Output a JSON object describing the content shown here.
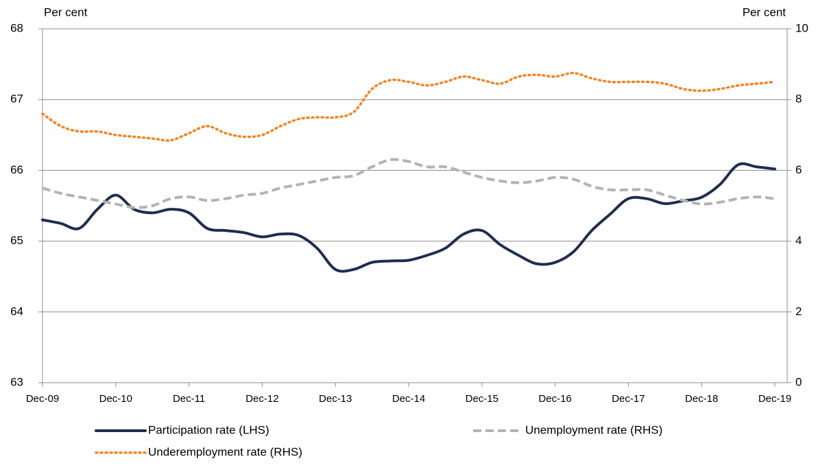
{
  "chart_data": {
    "type": "line",
    "y_label": "Per cent",
    "y2_label": "Per cent",
    "categories": [
      "Dec-09",
      null,
      null,
      null,
      "Dec-10",
      null,
      null,
      null,
      "Dec-11",
      null,
      null,
      null,
      "Dec-12",
      null,
      null,
      null,
      "Dec-13",
      null,
      null,
      null,
      "Dec-14",
      null,
      null,
      null,
      "Dec-15",
      null,
      null,
      null,
      "Dec-16",
      null,
      null,
      null,
      "Dec-17",
      null,
      null,
      null,
      "Dec-18",
      null,
      null,
      null,
      "Dec-19"
    ],
    "ylim": [
      63,
      68
    ],
    "yticks": [
      63,
      64,
      65,
      66,
      67,
      68
    ],
    "y2lim": [
      0,
      10
    ],
    "y2ticks": [
      0,
      2,
      4,
      6,
      8,
      10
    ],
    "grid": true,
    "series": [
      {
        "name": "Participation rate (LHS)",
        "color": "#1f2d4e",
        "dash": "solid",
        "axis": "y",
        "values": [
          65.3,
          65.25,
          65.18,
          65.45,
          65.65,
          65.45,
          65.4,
          65.45,
          65.4,
          65.18,
          65.15,
          65.12,
          65.06,
          65.1,
          65.08,
          64.9,
          64.6,
          64.6,
          64.7,
          64.72,
          64.73,
          64.8,
          64.9,
          65.1,
          65.15,
          64.95,
          64.8,
          64.68,
          64.7,
          64.85,
          65.15,
          65.38,
          65.6,
          65.6,
          65.53,
          65.57,
          65.62,
          65.8,
          66.08,
          66.05,
          66.02
        ]
      },
      {
        "name": "Unemployment rate (RHS)",
        "color": "#b3b3b3",
        "dash": "dashed",
        "axis": "y2",
        "values": [
          5.5,
          5.35,
          5.25,
          5.15,
          5.05,
          4.95,
          5.0,
          5.2,
          5.25,
          5.15,
          5.2,
          5.3,
          5.35,
          5.5,
          5.6,
          5.7,
          5.8,
          5.85,
          6.1,
          6.3,
          6.25,
          6.1,
          6.1,
          5.95,
          5.8,
          5.7,
          5.65,
          5.7,
          5.8,
          5.75,
          5.55,
          5.45,
          5.45,
          5.45,
          5.3,
          5.15,
          5.05,
          5.1,
          5.2,
          5.25,
          5.2
        ]
      },
      {
        "name": "Underemployment rate (RHS)",
        "color": "#f58220",
        "dash": "dotted",
        "axis": "y2",
        "values": [
          7.6,
          7.25,
          7.1,
          7.1,
          7.0,
          6.95,
          6.9,
          6.85,
          7.05,
          7.25,
          7.05,
          6.95,
          7.0,
          7.25,
          7.45,
          7.5,
          7.5,
          7.65,
          8.3,
          8.55,
          8.5,
          8.4,
          8.5,
          8.65,
          8.55,
          8.45,
          8.65,
          8.7,
          8.65,
          8.75,
          8.6,
          8.5,
          8.5,
          8.5,
          8.45,
          8.3,
          8.25,
          8.3,
          8.4,
          8.45,
          8.5
        ]
      }
    ]
  }
}
